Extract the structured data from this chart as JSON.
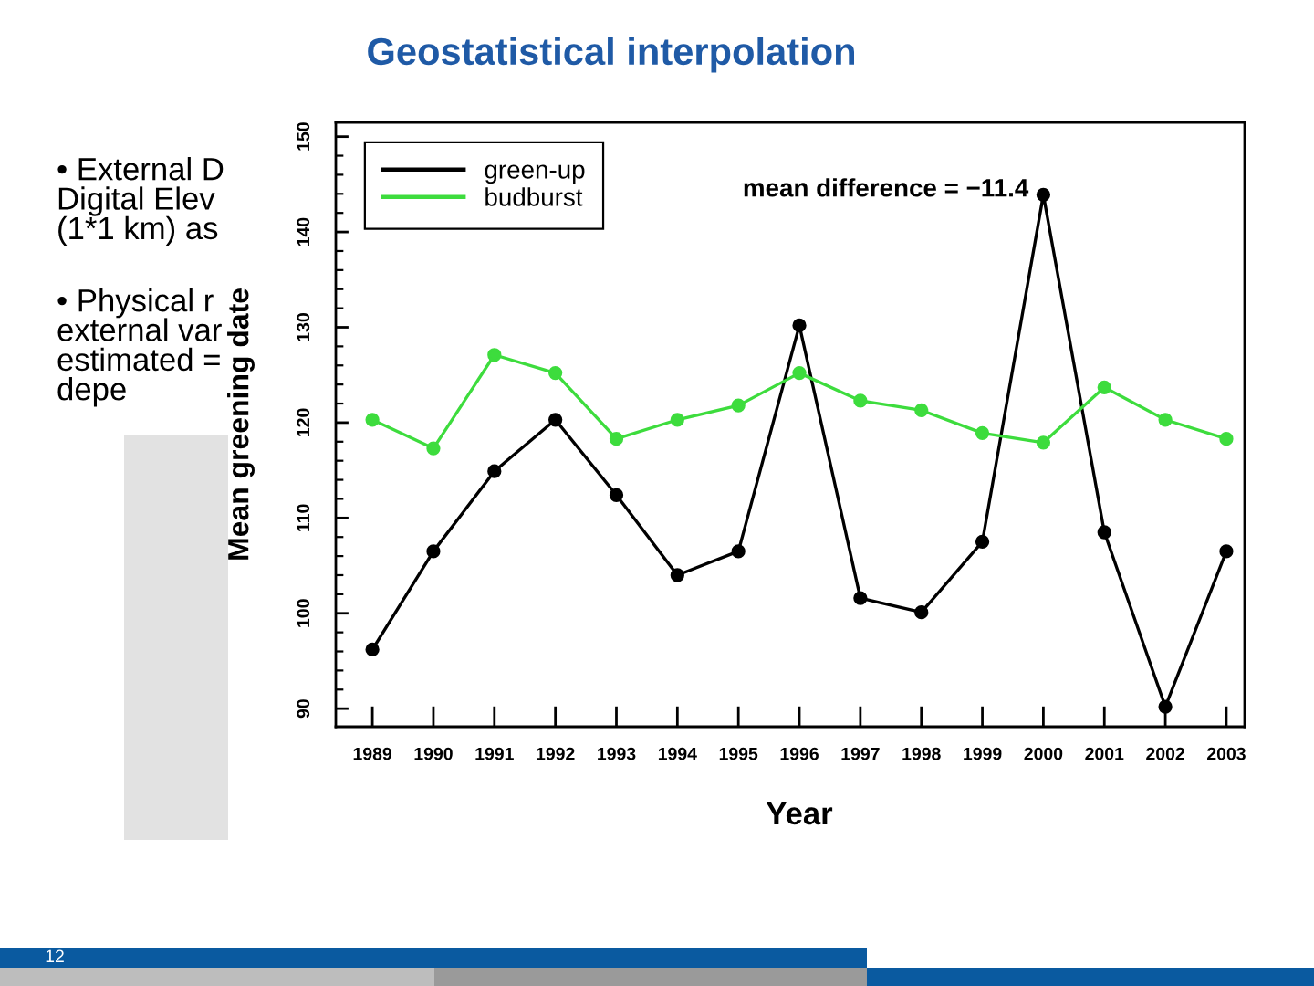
{
  "chart_data": {
    "type": "line",
    "title": "Geostatistical interpolation",
    "xlabel": "Year",
    "ylabel": "Mean greening date",
    "x": [
      1989,
      1990,
      1991,
      1992,
      1993,
      1994,
      1995,
      1996,
      1997,
      1998,
      1999,
      2000,
      2001,
      2002,
      2003
    ],
    "series": [
      {
        "name": "green-up",
        "color": "#000000",
        "values": [
          96.2,
          106.5,
          114.9,
          120.3,
          112.4,
          104.0,
          106.5,
          130.2,
          101.6,
          100.1,
          107.5,
          143.9,
          108.5,
          90.2,
          106.5
        ]
      },
      {
        "name": "budburst",
        "color": "#3ddc3d",
        "values": [
          120.3,
          117.3,
          127.1,
          125.2,
          118.3,
          120.3,
          121.8,
          125.2,
          122.3,
          121.3,
          118.9,
          117.9,
          123.7,
          120.3,
          118.3
        ]
      }
    ],
    "xlim": [
      1988.4,
      2003.3
    ],
    "xticks": [
      1989,
      1990,
      1991,
      1992,
      1993,
      1994,
      1995,
      1996,
      1997,
      1998,
      1999,
      2000,
      2001,
      2002,
      2003
    ],
    "ylim": [
      88.1,
      151.5
    ],
    "yticks": [
      90,
      100,
      110,
      120,
      130,
      140,
      150
    ],
    "legend": "top left",
    "marker": "circle",
    "line_style": "solid",
    "annotations": [
      "mean difference = −11.4",
      "• External D\nDigital Elev\n(1*1 km) as",
      "• Physical r\nexternal var\nestimated =\ndepe",
      "12"
    ]
  }
}
